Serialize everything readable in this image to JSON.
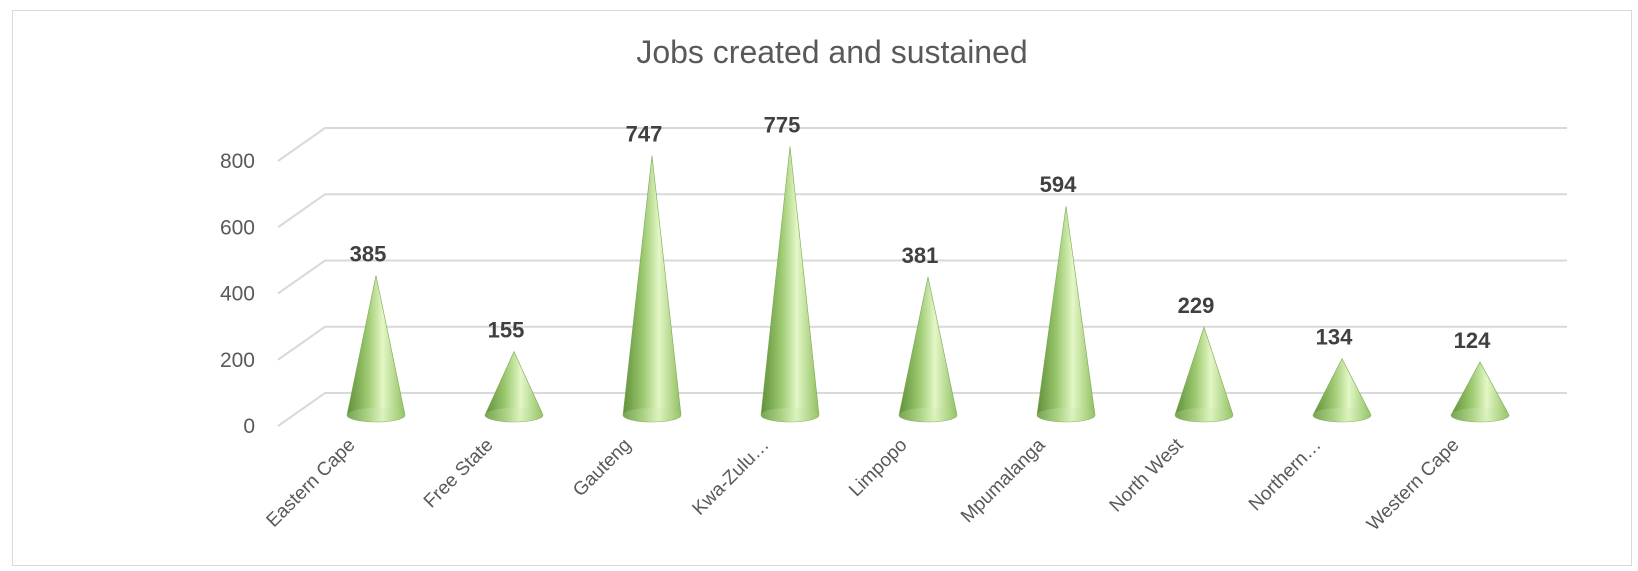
{
  "chart_data": {
    "type": "bar",
    "style": "3d-cone",
    "title": "Jobs created and sustained",
    "categories": [
      "Eastern Cape",
      "Free State",
      "Gauteng",
      "Kwa-Zulu…",
      "Limpopo",
      "Mpumalanga",
      "North West",
      "Northern…",
      "Western Cape"
    ],
    "series": [
      {
        "values": [
          385,
          155,
          747,
          775,
          381,
          594,
          229,
          134,
          124
        ]
      }
    ],
    "ylim": [
      0,
      800
    ],
    "yticks": [
      0,
      200,
      400,
      600,
      800
    ],
    "grid": true,
    "legend": "none",
    "colors": {
      "cone_light": "#e3f7c6",
      "cone_mid": "#a8d47e",
      "cone_dark": "#5f8f3a",
      "grid": "#d9d9d9",
      "text": "#595959"
    }
  }
}
